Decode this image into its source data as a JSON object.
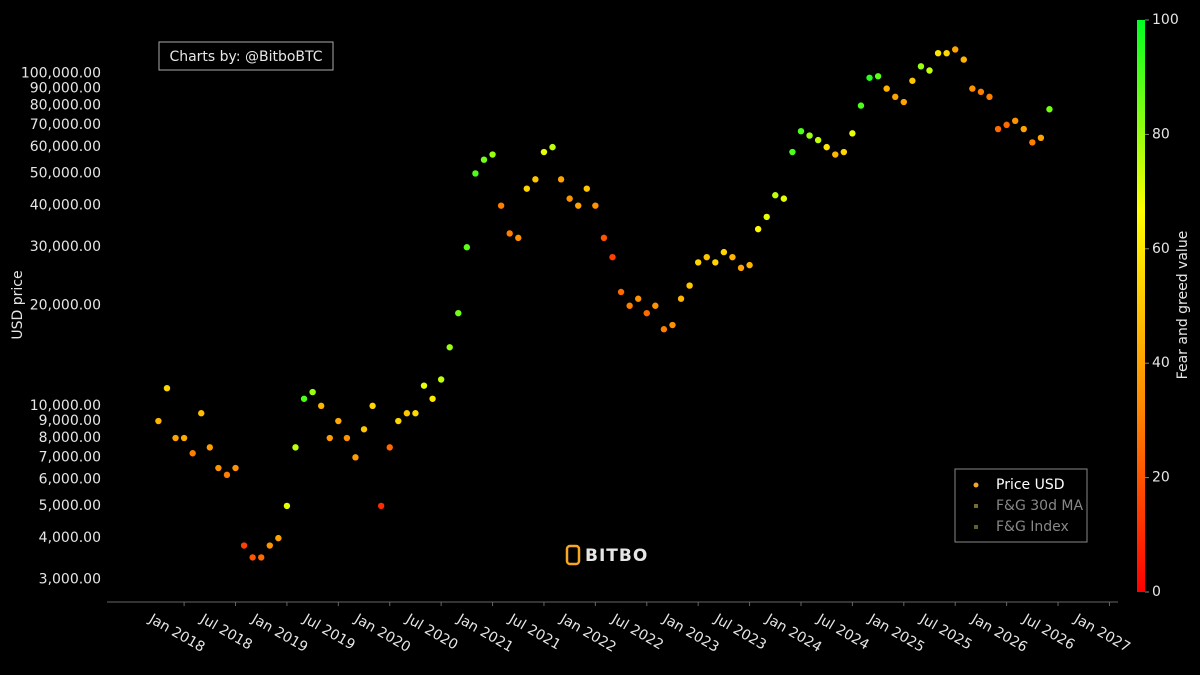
{
  "chart_data": {
    "type": "scatter",
    "annotation": "Charts by: @BitboBTC",
    "logo_text": "BITBO",
    "ylabel": "USD price",
    "log_y": true,
    "ylim": [
      2570,
      126000
    ],
    "yticks": [
      {
        "value": 3000,
        "label": "3,000.00"
      },
      {
        "value": 4000,
        "label": "4,000.00"
      },
      {
        "value": 5000,
        "label": "5,000.00"
      },
      {
        "value": 6000,
        "label": "6,000.00"
      },
      {
        "value": 7000,
        "label": "7,000.00"
      },
      {
        "value": 8000,
        "label": "8,000.00"
      },
      {
        "value": 9000,
        "label": "9,000.00"
      },
      {
        "value": 10000,
        "label": "10,000.00"
      },
      {
        "value": 20000,
        "label": "20,000.00"
      },
      {
        "value": 30000,
        "label": "30,000.00"
      },
      {
        "value": 40000,
        "label": "40,000.00"
      },
      {
        "value": 50000,
        "label": "50,000.00"
      },
      {
        "value": 60000,
        "label": "60,000.00"
      },
      {
        "value": 70000,
        "label": "70,000.00"
      },
      {
        "value": 80000,
        "label": "80,000.00"
      },
      {
        "value": 90000,
        "label": "90,000.00"
      },
      {
        "value": 100000,
        "label": "100,000.00"
      }
    ],
    "xlim": [
      "2017-04",
      "2027-02"
    ],
    "xticks": [
      {
        "value": "2018-01",
        "label": "Jan 2018"
      },
      {
        "value": "2018-07",
        "label": "Jul 2018"
      },
      {
        "value": "2019-01",
        "label": "Jan 2019"
      },
      {
        "value": "2019-07",
        "label": "Jul 2019"
      },
      {
        "value": "2020-01",
        "label": "Jan 2020"
      },
      {
        "value": "2020-07",
        "label": "Jul 2020"
      },
      {
        "value": "2021-01",
        "label": "Jan 2021"
      },
      {
        "value": "2021-07",
        "label": "Jul 2021"
      },
      {
        "value": "2022-01",
        "label": "Jan 2022"
      },
      {
        "value": "2022-07",
        "label": "Jul 2022"
      },
      {
        "value": "2023-01",
        "label": "Jan 2023"
      },
      {
        "value": "2023-07",
        "label": "Jul 2023"
      },
      {
        "value": "2024-01",
        "label": "Jan 2024"
      },
      {
        "value": "2024-07",
        "label": "Jul 2024"
      },
      {
        "value": "2025-01",
        "label": "Jan 2025"
      },
      {
        "value": "2025-07",
        "label": "Jul 2025"
      },
      {
        "value": "2026-01",
        "label": "Jan 2026"
      },
      {
        "value": "2026-07",
        "label": "Jul 2026"
      },
      {
        "value": "2027-01",
        "label": "Jan 2027"
      }
    ],
    "x": [
      "2017-10",
      "2017-11",
      "2017-12",
      "2018-01",
      "2018-02",
      "2018-03",
      "2018-04",
      "2018-05",
      "2018-06",
      "2018-07",
      "2018-08",
      "2018-09",
      "2018-10",
      "2018-11",
      "2018-12",
      "2019-01",
      "2019-02",
      "2019-03",
      "2019-04",
      "2019-05",
      "2019-06",
      "2019-07",
      "2019-08",
      "2019-09",
      "2019-10",
      "2019-11",
      "2019-12",
      "2020-01",
      "2020-02",
      "2020-03",
      "2020-04",
      "2020-05",
      "2020-06",
      "2020-07",
      "2020-08",
      "2020-09",
      "2020-10",
      "2020-11",
      "2020-12",
      "2021-01",
      "2021-02",
      "2021-03",
      "2021-04",
      "2021-05",
      "2021-06",
      "2021-07",
      "2021-08",
      "2021-09",
      "2021-10",
      "2021-11",
      "2021-12",
      "2022-01",
      "2022-02",
      "2022-03",
      "2022-04",
      "2022-05",
      "2022-06",
      "2022-07",
      "2022-08",
      "2022-09",
      "2022-10",
      "2022-11",
      "2022-12",
      "2023-01",
      "2023-02",
      "2023-03",
      "2023-04",
      "2023-05",
      "2023-06",
      "2023-07",
      "2023-08",
      "2023-09",
      "2023-10",
      "2023-11",
      "2023-12",
      "2024-01",
      "2024-02",
      "2024-03",
      "2024-04",
      "2024-05",
      "2024-06",
      "2024-07",
      "2024-08",
      "2024-09",
      "2024-10",
      "2024-11",
      "2024-12",
      "2025-01",
      "2025-02",
      "2025-03",
      "2025-04",
      "2025-05",
      "2025-06",
      "2025-07",
      "2025-08",
      "2025-09",
      "2025-10",
      "2025-11",
      "2025-12",
      "2026-01",
      "2026-02",
      "2026-03",
      "2026-04",
      "2026-05",
      "2026-06"
    ],
    "series": [
      {
        "name": "Price USD",
        "color": "#f5a623",
        "visible": true,
        "values": [
          9000,
          11300,
          8000,
          8000,
          7200,
          9500,
          7500,
          6500,
          6200,
          6500,
          3800,
          3500,
          3500,
          3800,
          4000,
          5000,
          7500,
          10500,
          11000,
          10000,
          8000,
          9000,
          8000,
          7000,
          8500,
          10000,
          5000,
          7500,
          9000,
          9500,
          9500,
          11500,
          10500,
          12000,
          15000,
          19000,
          30000,
          50000,
          55000,
          57000,
          40000,
          33000,
          32000,
          45000,
          48000,
          58000,
          60000,
          48000,
          42000,
          40000,
          45000,
          40000,
          32000,
          28000,
          22000,
          20000,
          21000,
          19000,
          20000,
          17000,
          17500,
          21000,
          23000,
          27000,
          28000,
          27000,
          29000,
          28000,
          26000,
          26500,
          34000,
          37000,
          43000,
          42000,
          58000,
          67000,
          65000,
          63000,
          60000,
          57000,
          58000,
          66000,
          80000,
          97000,
          98000,
          90000,
          85000,
          82000,
          95000,
          105000,
          102000,
          115000,
          115000,
          118000,
          110000,
          90000,
          88000,
          85000,
          68000,
          70000,
          72000,
          68000,
          62000,
          64000,
          78000
        ],
        "fg": [
          45,
          55,
          40,
          42,
          30,
          48,
          38,
          35,
          30,
          35,
          15,
          20,
          25,
          35,
          40,
          70,
          75,
          90,
          80,
          45,
          38,
          42,
          35,
          38,
          50,
          55,
          10,
          25,
          55,
          50,
          55,
          70,
          60,
          75,
          80,
          85,
          88,
          90,
          85,
          80,
          30,
          30,
          35,
          55,
          50,
          70,
          75,
          40,
          35,
          40,
          50,
          35,
          20,
          15,
          25,
          30,
          35,
          25,
          35,
          30,
          35,
          45,
          50,
          55,
          50,
          55,
          55,
          45,
          40,
          45,
          65,
          70,
          75,
          70,
          90,
          90,
          80,
          75,
          60,
          45,
          55,
          70,
          90,
          95,
          88,
          45,
          40,
          40,
          50,
          80,
          75,
          60,
          55,
          40,
          45,
          35,
          30,
          30,
          25,
          25,
          35,
          40,
          30,
          40,
          85
        ]
      },
      {
        "name": "F&G 30d MA",
        "color": "#7a6a2e",
        "visible": false
      },
      {
        "name": "F&G Index",
        "color": "#55662a",
        "visible": false
      }
    ],
    "colorscale": [
      "#ff0000",
      "#ff8c00",
      "#ffff00",
      "#00ff22"
    ],
    "colorbar_label": "Fear and greed value",
    "colorbar_lim": [
      0,
      100
    ],
    "colorbar_ticks": [
      0,
      20,
      40,
      60,
      80,
      100
    ]
  }
}
